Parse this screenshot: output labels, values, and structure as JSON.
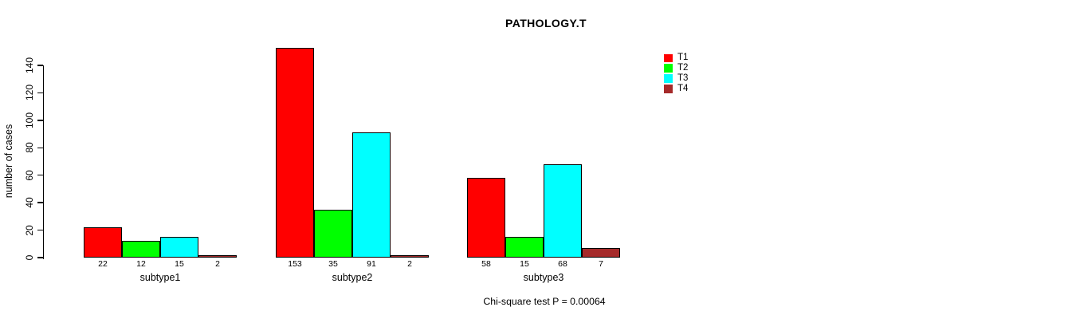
{
  "chart_data": {
    "type": "bar",
    "title": "PATHOLOGY.T",
    "ylabel": "number of cases",
    "xlabel": "",
    "categories": [
      "subtype1",
      "subtype2",
      "subtype3"
    ],
    "series": [
      {
        "name": "T1",
        "color": "#ff0000",
        "values": [
          22,
          153,
          58
        ]
      },
      {
        "name": "T2",
        "color": "#00ff00",
        "values": [
          12,
          35,
          15
        ]
      },
      {
        "name": "T3",
        "color": "#00ffff",
        "values": [
          15,
          91,
          68
        ]
      },
      {
        "name": "T4",
        "color": "#a52a2a",
        "values": [
          2,
          2,
          7
        ]
      }
    ],
    "yticks": [
      0,
      20,
      40,
      60,
      80,
      100,
      120,
      140
    ],
    "ylim": [
      0,
      140
    ],
    "bar_value_labels_shown": true,
    "grid": false,
    "legend_position": "right",
    "annotation": "Chi-square test P = 0.00064",
    "background_color": "#ffffff",
    "axis_color": "#000000"
  }
}
